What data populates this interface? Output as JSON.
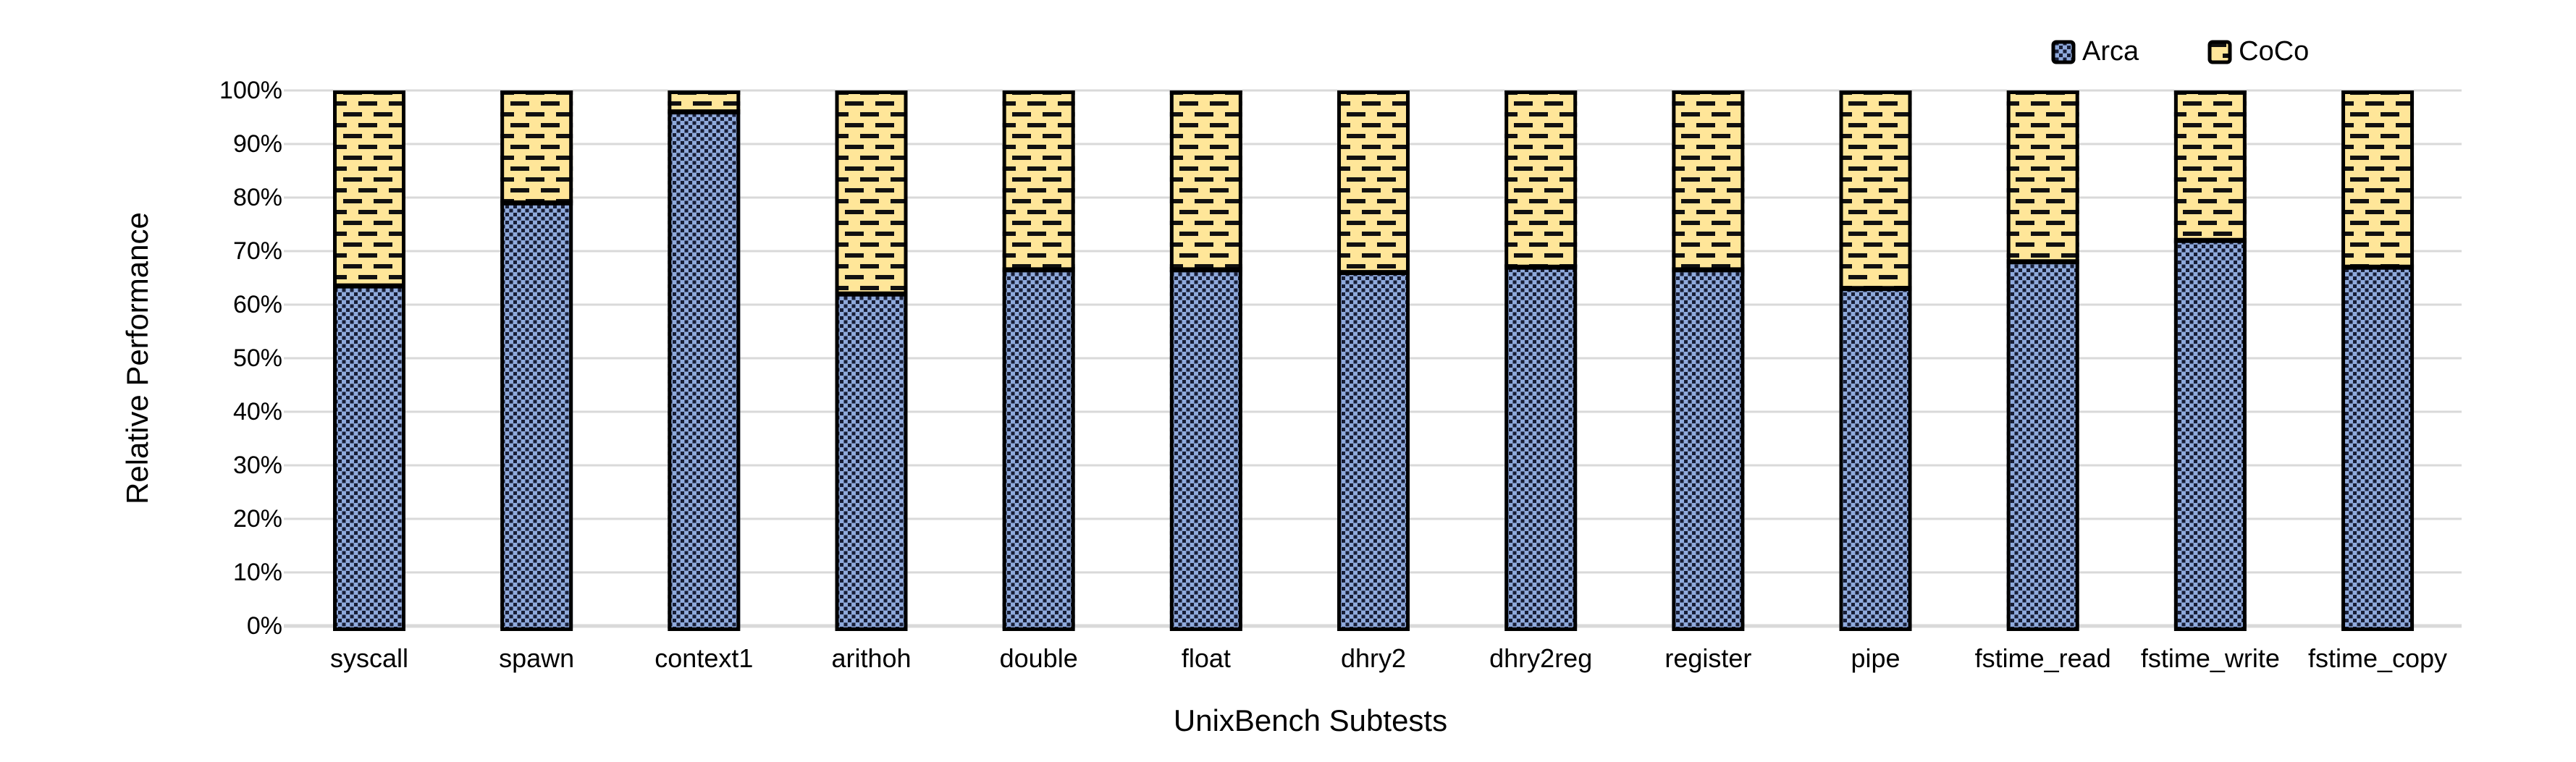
{
  "figure": {
    "background": "#FFFFFF"
  },
  "legend": {
    "position": "top-right",
    "items": [
      {
        "label": "Arca",
        "swatch_icon": "arca-hatch-swatch"
      },
      {
        "label": "CoCo",
        "swatch_icon": "coco-hatch-swatch"
      }
    ]
  },
  "chart_data": {
    "type": "bar",
    "stacked": true,
    "stack_unit": "percent",
    "title": "",
    "xlabel": "UnixBench Subtests",
    "ylabel": "Relative Performance",
    "categories": [
      "syscall",
      "spawn",
      "context1",
      "arithoh",
      "double",
      "float",
      "dhry2",
      "dhry2reg",
      "register",
      "pipe",
      "fstime_read",
      "fstime_write",
      "fstime_copy"
    ],
    "series": [
      {
        "name": "Arca",
        "color": "#8FAADC",
        "hatch": "diagonal-dashed",
        "hatch_color": "#181E36",
        "values": [
          63.5,
          79,
          96,
          62,
          66.5,
          66.5,
          66,
          67,
          66.5,
          63,
          68,
          72,
          67
        ]
      },
      {
        "name": "CoCo",
        "color": "#FFE699",
        "hatch": "horizontal-dashed",
        "hatch_color": "#111111",
        "values": [
          36.5,
          21,
          4,
          38,
          33.5,
          33.5,
          34,
          33,
          33.5,
          37,
          32,
          28,
          33
        ]
      }
    ],
    "ylim": [
      0,
      100
    ],
    "ytick_labels": [
      "0%",
      "10%",
      "20%",
      "30%",
      "40%",
      "50%",
      "60%",
      "70%",
      "80%",
      "90%",
      "100%"
    ],
    "ytick_values": [
      0,
      10,
      20,
      30,
      40,
      50,
      60,
      70,
      80,
      90,
      100
    ],
    "grid": "horizontal",
    "gridline_color": "#D9D9D9",
    "axis_line_color": "#D9D9D9",
    "bar_border_color": "#000000",
    "legend_position": "top-right"
  }
}
